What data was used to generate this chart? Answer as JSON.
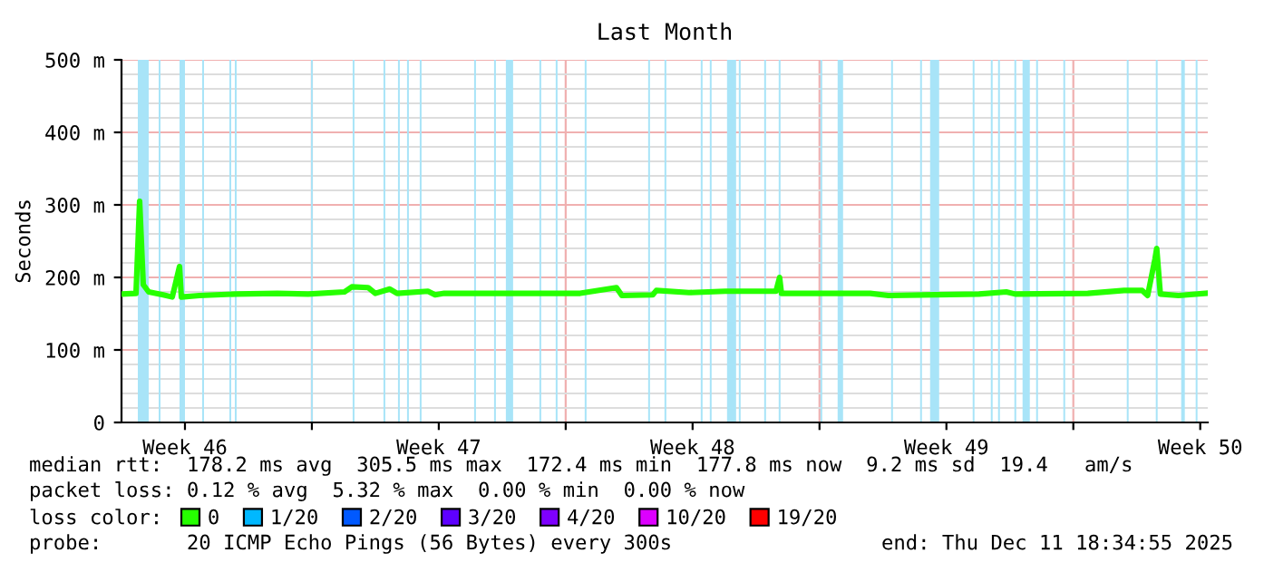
{
  "chart_data": {
    "type": "line",
    "title": "Last Month",
    "ylabel": "Seconds",
    "xlim": [
      "2025-11-11T18:00",
      "2025-12-11T17:00"
    ],
    "xticks": [
      {
        "value": "2025-11-13T12:00",
        "label": "Week 46"
      },
      {
        "value": "2025-11-17",
        "label": null
      },
      {
        "value": "2025-11-20T12:00",
        "label": "Week 47"
      },
      {
        "value": "2025-11-24",
        "label": null
      },
      {
        "value": "2025-11-27T12:00",
        "label": "Week 48"
      },
      {
        "value": "2025-12-01",
        "label": null
      },
      {
        "value": "2025-12-04T12:00",
        "label": "Week 49"
      },
      {
        "value": "2025-12-08",
        "label": null
      },
      {
        "value": "2025-12-11T12:00",
        "label": "Week 50"
      }
    ],
    "ylim": [
      0,
      500
    ],
    "yticks": [
      {
        "value": 0,
        "label": "0"
      },
      {
        "value": 100,
        "label": "100 m"
      },
      {
        "value": 200,
        "label": "200 m"
      },
      {
        "value": 300,
        "label": "300 m"
      },
      {
        "value": 400,
        "label": "400 m"
      },
      {
        "value": 500,
        "label": "500 m"
      }
    ],
    "grid": true,
    "legend": "bottom",
    "legend_title": "loss color:",
    "marker": "none",
    "line_style": "solid",
    "series": [
      {
        "name": "0",
        "color": "#26ff00",
        "x": [
          "2025-11-11T18:00",
          "2025-11-12T03:36",
          "2025-11-12T06:00",
          "2025-11-12T08:24",
          "2025-11-12T12:00",
          "2025-11-12T21:36",
          "2025-11-13T03:36",
          "2025-11-13T08:24",
          "2025-11-13T09:36",
          "2025-11-13T21:36",
          "2025-11-14T21:36",
          "2025-11-16T01:12",
          "2025-11-16T21:36",
          "2025-11-17T21:36",
          "2025-11-18T02:24",
          "2025-11-18T13:12",
          "2025-11-18T18:00",
          "2025-11-19T03:36",
          "2025-11-19T08:24",
          "2025-11-20T04:48",
          "2025-11-20T09:36",
          "2025-11-20T15:36",
          "2025-11-24T09:36",
          "2025-11-25T09:36",
          "2025-11-25T13:12",
          "2025-11-26T09:36",
          "2025-11-26T12:00",
          "2025-11-27T09:36",
          "2025-11-28T09:36",
          "2025-11-29T19:12",
          "2025-11-29T21:36",
          "2025-11-29T22:48",
          "2025-12-02T09:36",
          "2025-12-02T21:36",
          "2025-12-05T09:36",
          "2025-12-06T03:36",
          "2025-12-06T09:36",
          "2025-12-08T09:36",
          "2025-12-09T09:36",
          "2025-12-09T21:36",
          "2025-12-10T01:12",
          "2025-12-10T06:00",
          "2025-12-10T07:12",
          "2025-12-10T09:36",
          "2025-12-10T21:36",
          "2025-12-11T15:36"
        ],
        "values": [
          177,
          178,
          305,
          190,
          180,
          176,
          173,
          215,
          173,
          175,
          177,
          178,
          177,
          180,
          187,
          186,
          178,
          184,
          178,
          181,
          176,
          178,
          178,
          186,
          175,
          176,
          182,
          179,
          181,
          181,
          200,
          178,
          178,
          175,
          177,
          180,
          177,
          178,
          182,
          182,
          175,
          225,
          240,
          177,
          175,
          178
        ]
      },
      {
        "name": "1/20",
        "color": "#00b8ff"
      },
      {
        "name": "2/20",
        "color": "#0059ff"
      },
      {
        "name": "3/20",
        "color": "#5e00ff"
      },
      {
        "name": "4/20",
        "color": "#7e00ff"
      },
      {
        "name": "10/20",
        "color": "#dd00ff"
      },
      {
        "name": "19/20",
        "color": "#ff0000"
      }
    ],
    "bands": [
      {
        "axis": "x",
        "from": "2025-11-12T04:48",
        "to": "2025-11-12T12:00",
        "color": "#a8e4f8"
      },
      {
        "axis": "x",
        "from": "2025-11-12T18:36",
        "to": "2025-11-12T19:48",
        "color": "#a8e4f8"
      },
      {
        "axis": "x",
        "from": "2025-11-13T08:24",
        "to": "2025-11-13T12:00",
        "color": "#a8e4f8"
      },
      {
        "axis": "x",
        "from": "2025-11-13T23:24",
        "to": "2025-11-14T00:36",
        "color": "#a8e4f8"
      },
      {
        "axis": "x",
        "from": "2025-11-14T17:24",
        "to": "2025-11-14T18:36",
        "color": "#a8e4f8"
      },
      {
        "axis": "x",
        "from": "2025-11-14T21:00",
        "to": "2025-11-14T22:12",
        "color": "#a8e4f8"
      },
      {
        "axis": "x",
        "from": "2025-11-16T23:24",
        "to": "2025-11-17T00:36",
        "color": "#a8e4f8"
      },
      {
        "axis": "x",
        "from": "2025-11-18T03:00",
        "to": "2025-11-18T04:12",
        "color": "#a8e4f8"
      },
      {
        "axis": "x",
        "from": "2025-11-18T23:24",
        "to": "2025-11-19T00:36",
        "color": "#a8e4f8"
      },
      {
        "axis": "x",
        "from": "2025-11-19T09:00",
        "to": "2025-11-19T10:12",
        "color": "#a8e4f8"
      },
      {
        "axis": "x",
        "from": "2025-11-19T15:00",
        "to": "2025-11-19T16:12",
        "color": "#a8e4f8"
      },
      {
        "axis": "x",
        "from": "2025-11-19T23:24",
        "to": "2025-11-20T00:36",
        "color": "#a8e4f8"
      },
      {
        "axis": "x",
        "from": "2025-11-21T11:24",
        "to": "2025-11-21T12:36",
        "color": "#a8e4f8"
      },
      {
        "axis": "x",
        "from": "2025-11-22T00:36",
        "to": "2025-11-22T01:48",
        "color": "#a8e4f8"
      },
      {
        "axis": "x",
        "from": "2025-11-22T08:24",
        "to": "2025-11-22T13:12",
        "color": "#a8e4f8"
      },
      {
        "axis": "x",
        "from": "2025-11-23T06:36",
        "to": "2025-11-23T07:48",
        "color": "#a8e4f8"
      },
      {
        "axis": "x",
        "from": "2025-11-23T17:24",
        "to": "2025-11-23T18:36",
        "color": "#a8e4f8"
      },
      {
        "axis": "x",
        "from": "2025-11-24T12:36",
        "to": "2025-11-24T13:48",
        "color": "#a8e4f8"
      },
      {
        "axis": "x",
        "from": "2025-11-26T06:36",
        "to": "2025-11-26T07:48",
        "color": "#a8e4f8"
      },
      {
        "axis": "x",
        "from": "2025-11-26T17:24",
        "to": "2025-11-26T18:36",
        "color": "#a8e4f8"
      },
      {
        "axis": "x",
        "from": "2025-11-27T17:24",
        "to": "2025-11-27T18:36",
        "color": "#a8e4f8"
      },
      {
        "axis": "x",
        "from": "2025-11-27T23:24",
        "to": "2025-11-28T00:36",
        "color": "#a8e4f8"
      },
      {
        "axis": "x",
        "from": "2025-11-28T10:48",
        "to": "2025-11-28T16:48",
        "color": "#a8e4f8"
      },
      {
        "axis": "x",
        "from": "2025-11-28T18:36",
        "to": "2025-11-28T19:48",
        "color": "#a8e4f8"
      },
      {
        "axis": "x",
        "from": "2025-11-29T11:24",
        "to": "2025-11-29T12:36",
        "color": "#a8e4f8"
      },
      {
        "axis": "x",
        "from": "2025-11-29T21:00",
        "to": "2025-11-29T22:12",
        "color": "#a8e4f8"
      },
      {
        "axis": "x",
        "from": "2025-12-01T00:36",
        "to": "2025-12-01T01:48",
        "color": "#a8e4f8"
      },
      {
        "axis": "x",
        "from": "2025-12-01T12:00",
        "to": "2025-12-01T15:36",
        "color": "#a8e4f8"
      },
      {
        "axis": "x",
        "from": "2025-12-02T23:24",
        "to": "2025-12-03T00:36",
        "color": "#a8e4f8"
      },
      {
        "axis": "x",
        "from": "2025-12-03T18:36",
        "to": "2025-12-03T19:48",
        "color": "#a8e4f8"
      },
      {
        "axis": "x",
        "from": "2025-12-04T01:12",
        "to": "2025-12-04T07:12",
        "color": "#a8e4f8"
      },
      {
        "axis": "x",
        "from": "2025-12-05T05:24",
        "to": "2025-12-05T06:36",
        "color": "#a8e4f8"
      },
      {
        "axis": "x",
        "from": "2025-12-05T17:24",
        "to": "2025-12-05T18:36",
        "color": "#a8e4f8"
      },
      {
        "axis": "x",
        "from": "2025-12-05T22:12",
        "to": "2025-12-05T23:24",
        "color": "#a8e4f8"
      },
      {
        "axis": "x",
        "from": "2025-12-06T09:00",
        "to": "2025-12-06T10:12",
        "color": "#a8e4f8"
      },
      {
        "axis": "x",
        "from": "2025-12-06T14:24",
        "to": "2025-12-06T19:12",
        "color": "#a8e4f8"
      },
      {
        "axis": "x",
        "from": "2025-12-06T23:24",
        "to": "2025-12-07T00:36",
        "color": "#a8e4f8"
      },
      {
        "axis": "x",
        "from": "2025-12-07T17:24",
        "to": "2025-12-07T18:36",
        "color": "#a8e4f8"
      },
      {
        "axis": "x",
        "from": "2025-12-09T11:24",
        "to": "2025-12-09T12:36",
        "color": "#a8e4f8"
      },
      {
        "axis": "x",
        "from": "2025-12-10T06:36",
        "to": "2025-12-10T07:48",
        "color": "#a8e4f8"
      },
      {
        "axis": "x",
        "from": "2025-12-10T23:24",
        "to": "2025-12-11T01:48",
        "color": "#a8e4f8"
      },
      {
        "axis": "x",
        "from": "2025-12-11T09:00",
        "to": "2025-12-11T10:12",
        "color": "#a8e4f8"
      }
    ],
    "annotations": [
      "median rtt:  178.2 ms avg  305.5 ms max  172.4 ms min  177.8 ms now  9.2 ms sd  19.4   am/s",
      "packet loss: 0.12 % avg  5.32 % max  0.00 % min  0.00 % now",
      "probe:       20 ICMP Echo Pings (56 Bytes) every 300s",
      "end: Thu Dec 11 18:34:55 2025"
    ]
  }
}
